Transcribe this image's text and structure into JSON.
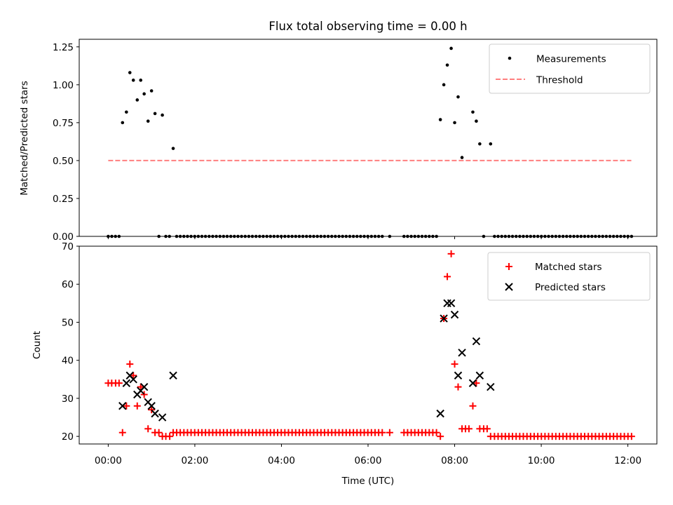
{
  "chart_data": [
    {
      "type": "scatter",
      "title": "Flux total observing time = 0.00 h",
      "xlabel": "",
      "ylabel": "Matched/Predicted stars",
      "xlim": [
        -0.67,
        12.67
      ],
      "ylim": [
        0,
        1.3
      ],
      "yticks": [
        0,
        0.25,
        0.5,
        0.75,
        1.0,
        1.25
      ],
      "ytick_labels": [
        "0.00",
        "0.25",
        "0.50",
        "0.75",
        "1.00",
        "1.25"
      ],
      "legend_position": "top-right",
      "series": [
        {
          "name": "Measurements",
          "marker": "dot",
          "color": "#000000",
          "points": [
            [
              0.33,
              0.75
            ],
            [
              0.42,
              0.82
            ],
            [
              0.5,
              1.08
            ],
            [
              0.58,
              1.03
            ],
            [
              0.67,
              0.9
            ],
            [
              0.75,
              1.03
            ],
            [
              0.83,
              0.94
            ],
            [
              0.92,
              0.76
            ],
            [
              1.0,
              0.96
            ],
            [
              1.08,
              0.81
            ],
            [
              1.25,
              0.8
            ],
            [
              1.5,
              0.58
            ],
            [
              7.67,
              0.77
            ],
            [
              7.75,
              1.0
            ],
            [
              7.83,
              1.13
            ],
            [
              7.92,
              1.24
            ],
            [
              8.0,
              0.75
            ],
            [
              8.08,
              0.92
            ],
            [
              8.17,
              0.52
            ],
            [
              8.42,
              0.82
            ],
            [
              8.5,
              0.76
            ],
            [
              8.58,
              0.61
            ],
            [
              8.83,
              0.61
            ]
          ],
          "zero_x_ranges": [
            [
              0.0,
              0.25
            ],
            [
              1.17,
              1.17
            ],
            [
              1.33,
              1.42
            ],
            [
              1.58,
              6.33
            ],
            [
              6.5,
              6.5
            ],
            [
              6.83,
              7.58
            ],
            [
              8.67,
              8.67
            ],
            [
              8.92,
              12.08
            ]
          ],
          "zero_x_step": 0.0833
        },
        {
          "name": "Threshold",
          "style": "dashed",
          "color": "#ff7f7f",
          "x": [
            0.0,
            12.08
          ],
          "y": [
            0.5,
            0.5
          ]
        }
      ]
    },
    {
      "type": "scatter",
      "title": "",
      "xlabel": "Time (UTC)",
      "ylabel": "Count",
      "xlim": [
        -0.67,
        12.67
      ],
      "ylim": [
        18,
        70
      ],
      "yticks": [
        20,
        30,
        40,
        50,
        60,
        70
      ],
      "ytick_labels": [
        "20",
        "30",
        "40",
        "50",
        "60",
        "70"
      ],
      "xticks": [
        0,
        2,
        4,
        6,
        8,
        10,
        12
      ],
      "xtick_labels": [
        "00:00",
        "02:00",
        "04:00",
        "06:00",
        "08:00",
        "10:00",
        "12:00"
      ],
      "legend_position": "top-right",
      "series": [
        {
          "name": "Matched stars",
          "marker": "plus",
          "color": "#ff0000",
          "points": [
            [
              0.0,
              34
            ],
            [
              0.08,
              34
            ],
            [
              0.17,
              34
            ],
            [
              0.25,
              34
            ],
            [
              0.33,
              21
            ],
            [
              0.42,
              28
            ],
            [
              0.5,
              39
            ],
            [
              0.58,
              36
            ],
            [
              0.67,
              28
            ],
            [
              0.75,
              33
            ],
            [
              0.83,
              31
            ],
            [
              0.92,
              22
            ],
            [
              1.0,
              27
            ],
            [
              1.08,
              21
            ],
            [
              1.17,
              21
            ],
            [
              1.25,
              20
            ],
            [
              1.33,
              20
            ],
            [
              1.42,
              20
            ],
            [
              1.5,
              21
            ],
            [
              7.67,
              20
            ],
            [
              7.75,
              51
            ],
            [
              7.83,
              62
            ],
            [
              7.92,
              68
            ],
            [
              8.0,
              39
            ],
            [
              8.08,
              33
            ],
            [
              8.17,
              22
            ],
            [
              8.25,
              22
            ],
            [
              8.33,
              22
            ],
            [
              8.42,
              28
            ],
            [
              8.5,
              34
            ],
            [
              8.58,
              22
            ],
            [
              8.67,
              22
            ],
            [
              8.75,
              22
            ],
            [
              8.83,
              20
            ]
          ],
          "baseline_value": 21,
          "baseline_x_ranges": [
            [
              1.58,
              6.33
            ],
            [
              6.5,
              6.5
            ],
            [
              6.83,
              7.58
            ]
          ],
          "tail_value": 20,
          "tail_x_ranges": [
            [
              8.92,
              12.08
            ]
          ],
          "step": 0.0833
        },
        {
          "name": "Predicted stars",
          "marker": "x",
          "color": "#000000",
          "points": [
            [
              0.33,
              28
            ],
            [
              0.42,
              34
            ],
            [
              0.5,
              36
            ],
            [
              0.58,
              35
            ],
            [
              0.67,
              31
            ],
            [
              0.75,
              32
            ],
            [
              0.83,
              33
            ],
            [
              0.92,
              29
            ],
            [
              1.0,
              28
            ],
            [
              1.08,
              26
            ],
            [
              1.25,
              25
            ],
            [
              1.5,
              36
            ],
            [
              7.67,
              26
            ],
            [
              7.75,
              51
            ],
            [
              7.83,
              55
            ],
            [
              7.92,
              55
            ],
            [
              8.0,
              52
            ],
            [
              8.08,
              36
            ],
            [
              8.17,
              42
            ],
            [
              8.42,
              34
            ],
            [
              8.5,
              45
            ],
            [
              8.58,
              36
            ],
            [
              8.83,
              33
            ]
          ]
        }
      ]
    }
  ]
}
